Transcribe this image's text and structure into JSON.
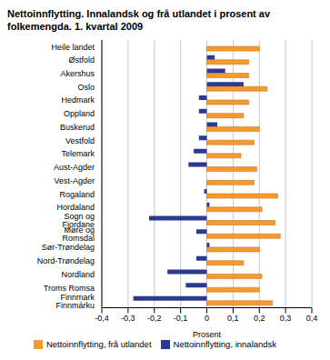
{
  "chart_data": {
    "type": "bar",
    "orientation": "horizontal",
    "title": "Nettoinnflytting. Innalandsk og frå utlandet i prosent av folkemengda. 1. kvartal 2009",
    "x_label": "Prosent",
    "categories": [
      "Heile landet",
      "Østfold",
      "Akershus",
      "Oslo",
      "Hedmark",
      "Oppland",
      "Buskerud",
      "Vestfold",
      "Telemark",
      "Aust-Agder",
      "Vest-Agder",
      "Rogaland",
      "Hordaland",
      "Sogn og Fjordane",
      "Møre og Romsdal",
      "Sør-Trøndelag",
      "Nord-Trøndelag",
      "Nordland",
      "Troms Romsa",
      "Finnmark Finnmárku"
    ],
    "series": [
      {
        "name": "Nettoinnflytting, innalandsk",
        "color": "#2b3990",
        "values": [
          0.0,
          0.03,
          0.07,
          0.14,
          -0.03,
          -0.03,
          0.04,
          -0.03,
          -0.05,
          -0.07,
          0.0,
          -0.01,
          0.01,
          -0.22,
          -0.04,
          0.01,
          -0.04,
          -0.15,
          -0.08,
          -0.28
        ]
      },
      {
        "name": "Nettoinnflytting, frå utlandet",
        "color": "#f79a2e",
        "values": [
          0.2,
          0.16,
          0.16,
          0.23,
          0.16,
          0.14,
          0.2,
          0.18,
          0.13,
          0.19,
          0.18,
          0.27,
          0.21,
          0.26,
          0.28,
          0.2,
          0.14,
          0.21,
          0.2,
          0.25
        ]
      }
    ],
    "xlim": [
      -0.4,
      0.4
    ],
    "xticks": [
      {
        "value": -0.4,
        "label": "-0,4"
      },
      {
        "value": -0.3,
        "label": "-0,3"
      },
      {
        "value": -0.2,
        "label": "-0,2"
      },
      {
        "value": -0.1,
        "label": "-0,1"
      },
      0,
      {
        "value": 0.1,
        "label": "0,1"
      },
      {
        "value": 0.2,
        "label": "0,2"
      },
      {
        "value": 0.3,
        "label": "0,3"
      },
      {
        "value": 0.4,
        "label": "0,4"
      }
    ],
    "grid": true,
    "legend": "bottom"
  }
}
